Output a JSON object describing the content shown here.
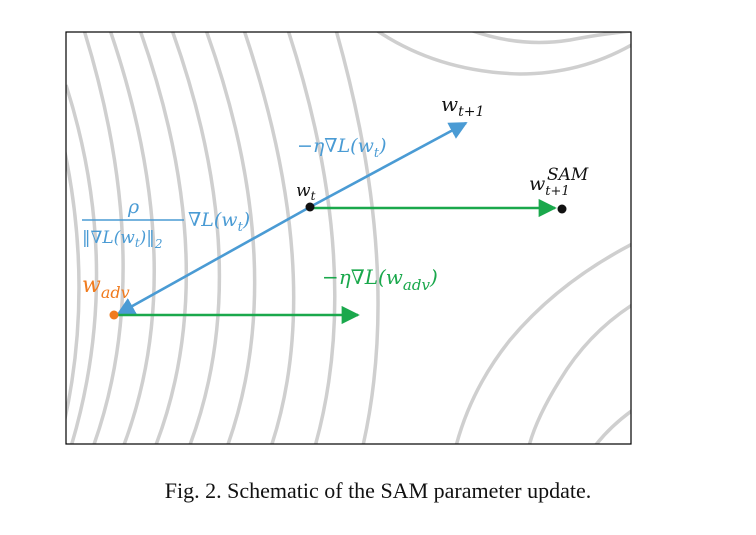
{
  "colors": {
    "blue": "#4a9bd4",
    "green": "#1aa84c",
    "orange": "#f07b1e",
    "contour": "#cfcfcf",
    "dot": "#111111"
  },
  "labels": {
    "w_t1_base": "w",
    "w_t1_sub": "t+1",
    "grad_top": "−η∇L(w",
    "grad_top_sub": "t",
    "grad_top_close": ")",
    "w_t_base": "w",
    "w_t_sub": "t",
    "sam_base": "w",
    "sam_sub": "t+1",
    "sam_sup": "SAM",
    "rho": "ρ",
    "norm_open": "‖∇L(w",
    "norm_sub": "t",
    "norm_close": ")‖",
    "norm_two": "2",
    "gradL": "∇L(w",
    "gradL_sub": "t",
    "gradL_close": ")",
    "wadv_base": "w",
    "wadv_sub": "adv",
    "grad_adv": "−η∇L(w",
    "grad_adv_sub": "adv",
    "grad_adv_close": ")"
  },
  "caption": "Fig. 2.  Schematic of the SAM parameter update."
}
